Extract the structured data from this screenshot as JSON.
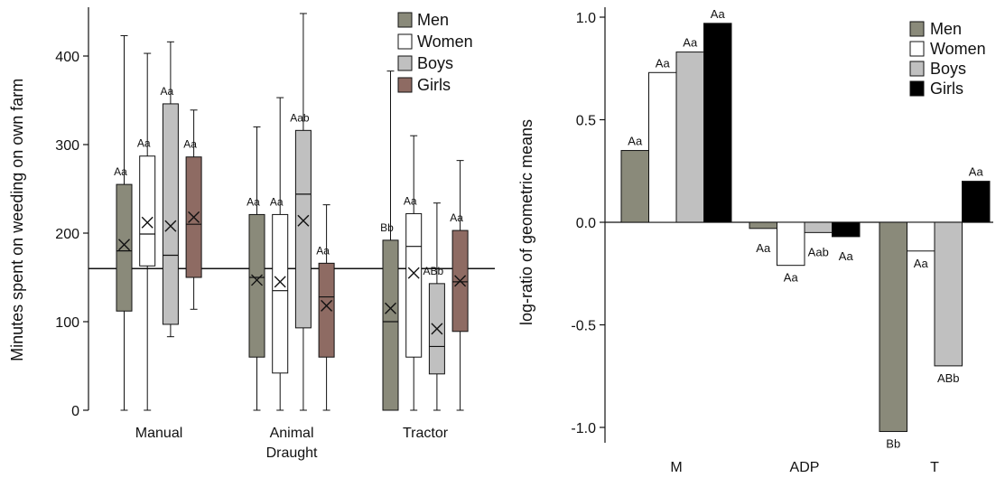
{
  "chart_data": [
    {
      "type": "box",
      "ylabel": "Minutes spent on weeding on own farm",
      "ylim": [
        0,
        450
      ],
      "yticks": [
        0,
        100,
        200,
        300,
        400
      ],
      "reference_line": 160,
      "categories": [
        "Manual",
        "Animal\nDraught",
        "Tractor"
      ],
      "category_lines": [
        [
          "Manual"
        ],
        [
          "Animal",
          "Draught"
        ],
        [
          "Tractor"
        ]
      ],
      "series": [
        {
          "name": "Men",
          "color": "#8a8a7a",
          "boxes": [
            {
              "min": 0,
              "q1": 112,
              "median": 180,
              "mean": 187,
              "q3": 255,
              "max": 423,
              "label": "Aa"
            },
            {
              "min": 0,
              "q1": 60,
              "median": 150,
              "mean": 147,
              "q3": 221,
              "max": 320,
              "label": "Aa"
            },
            {
              "min": 0,
              "q1": 0,
              "median": 100,
              "mean": 115,
              "q3": 192,
              "max": 383,
              "label": "Bb"
            }
          ]
        },
        {
          "name": "Women",
          "color": "#ffffff",
          "boxes": [
            {
              "min": 0,
              "q1": 163,
              "median": 199,
              "mean": 212,
              "q3": 287,
              "max": 403,
              "label": "Aa"
            },
            {
              "min": 0,
              "q1": 42,
              "median": 135,
              "mean": 145,
              "q3": 221,
              "max": 353,
              "label": "Aa"
            },
            {
              "min": 0,
              "q1": 60,
              "median": 185,
              "mean": 155,
              "q3": 222,
              "max": 310,
              "label": "Aa"
            }
          ]
        },
        {
          "name": "Boys",
          "color": "#c0c0c0",
          "boxes": [
            {
              "min": 83,
              "q1": 97,
              "median": 175,
              "mean": 208,
              "q3": 346,
              "max": 416,
              "label": "Aa"
            },
            {
              "min": 0,
              "q1": 93,
              "median": 244,
              "mean": 214,
              "q3": 316,
              "max": 448,
              "label": "Aab"
            },
            {
              "min": 0,
              "q1": 41,
              "median": 72,
              "mean": 92,
              "q3": 143,
              "max": 234,
              "label": "ABb"
            }
          ]
        },
        {
          "name": "Girls",
          "color": "#8e6b63",
          "boxes": [
            {
              "min": 114,
              "q1": 150,
              "median": 210,
              "mean": 218,
              "q3": 286,
              "max": 339,
              "label": "Aa"
            },
            {
              "min": 0,
              "q1": 60,
              "median": 128,
              "mean": 118,
              "q3": 166,
              "max": 232,
              "label": "Aa"
            },
            {
              "min": 0,
              "q1": 89,
              "median": 145,
              "mean": 146,
              "q3": 203,
              "max": 282,
              "label": "Aa"
            }
          ]
        }
      ],
      "legend_position": "top-right"
    },
    {
      "type": "bar",
      "ylabel": "log-ratio of geometric means",
      "ylim": [
        -1.1,
        1.0
      ],
      "yticks": [
        -1.0,
        -0.5,
        0.0,
        0.5,
        1.0
      ],
      "ytick_labels": [
        "-1.0",
        "-0.5",
        "0.0",
        "0.5",
        "1.0"
      ],
      "categories": [
        "M",
        "ADP",
        "T"
      ],
      "series": [
        {
          "name": "Men",
          "color": "#8a8a7a",
          "values": [
            0.35,
            -0.03,
            -1.02
          ],
          "labels": [
            "Aa",
            "Aa",
            "Bb"
          ]
        },
        {
          "name": "Women",
          "color": "#ffffff",
          "values": [
            0.73,
            -0.21,
            -0.14
          ],
          "labels": [
            "Aa",
            "Aa",
            "Aa"
          ]
        },
        {
          "name": "Boys",
          "color": "#c0c0c0",
          "values": [
            0.83,
            -0.05,
            -0.7
          ],
          "labels": [
            "Aa",
            "Aab",
            "ABb"
          ]
        },
        {
          "name": "Girls",
          "color": "#000000",
          "values": [
            0.97,
            -0.07,
            0.2
          ],
          "labels": [
            "Aa",
            "Aa",
            "Aa"
          ]
        }
      ],
      "legend_position": "top-right"
    }
  ]
}
